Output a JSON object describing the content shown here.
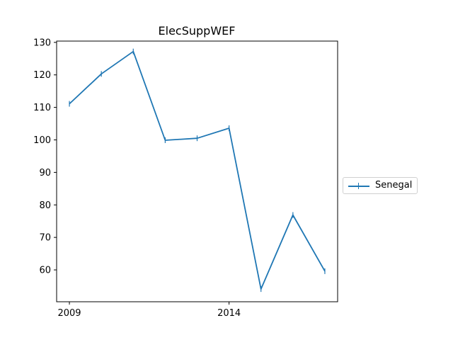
{
  "chart_data": {
    "type": "line",
    "title": "ElecSuppWEF",
    "xlabel": "",
    "ylabel": "",
    "x": [
      2009,
      2010,
      2011,
      2012,
      2013,
      2014,
      2015,
      2016,
      2017
    ],
    "x_ticks": [
      2009,
      2014
    ],
    "y_ticks": [
      60,
      70,
      80,
      90,
      100,
      110,
      120,
      130
    ],
    "xlim": [
      2008.6,
      2017.4
    ],
    "ylim": [
      50.2,
      130.4
    ],
    "grid": false,
    "legend_position": "right",
    "series": [
      {
        "name": "Senegal",
        "color": "#1f77b4",
        "marker": "vline",
        "values": [
          111.1,
          120.3,
          127.2,
          99.9,
          100.5,
          103.6,
          54.1,
          76.9,
          59.6
        ]
      }
    ]
  }
}
